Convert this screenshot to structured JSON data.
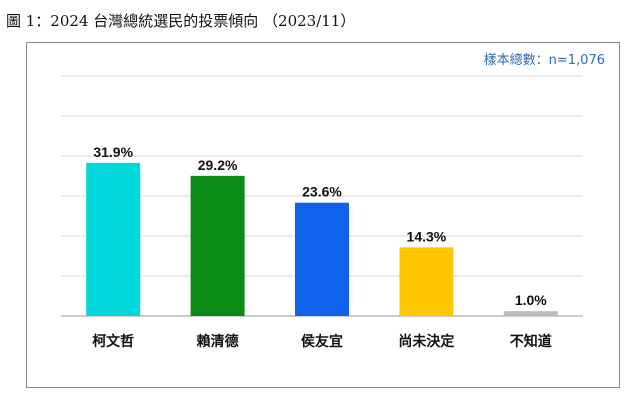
{
  "figure": {
    "title": "圖 1：2024 台灣總統選民的投票傾向 （2023/11）"
  },
  "sample": {
    "note": "樣本總數：n=1,076"
  },
  "chart_data": {
    "type": "bar",
    "categories": [
      "柯文哲",
      "賴清德",
      "侯友宜",
      "尚未決定",
      "不知道"
    ],
    "values": [
      31.9,
      29.2,
      23.6,
      14.3,
      1.0
    ],
    "value_labels": [
      "31.9%",
      "29.2%",
      "23.6%",
      "14.3%",
      "1.0%"
    ],
    "colors": [
      "#00d8dc",
      "#0b8a15",
      "#0f62ea",
      "#ffc700",
      "#bcbcbc"
    ],
    "ylim": [
      0,
      50
    ],
    "grid": true,
    "legend": "none"
  }
}
